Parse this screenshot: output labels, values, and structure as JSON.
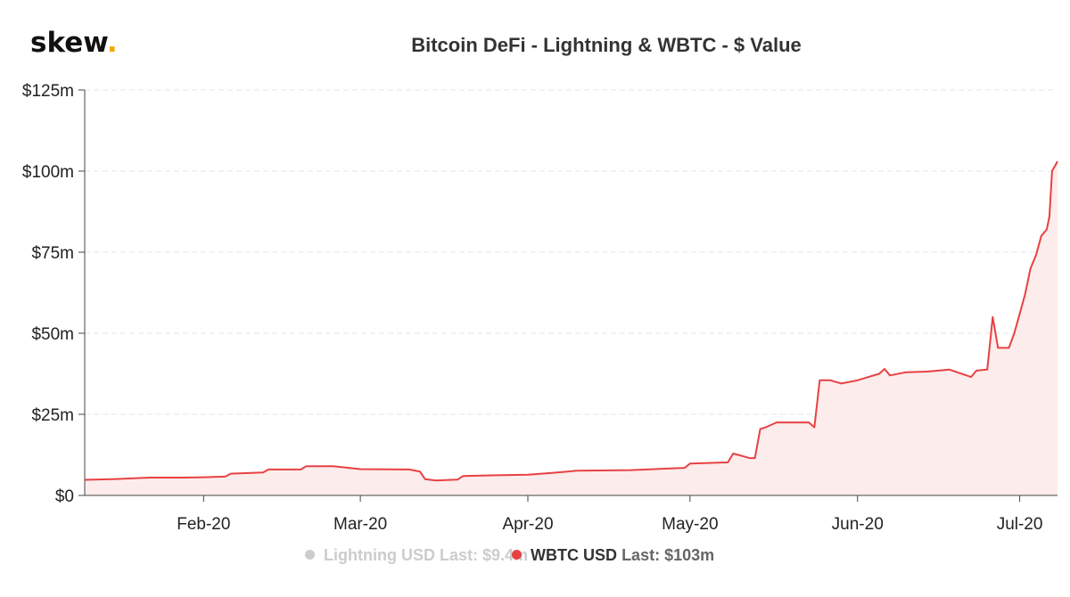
{
  "brand": {
    "logo_text": "skew",
    "logo_dot": ".",
    "dot_color": "#f2a900"
  },
  "chart_data": {
    "type": "line",
    "title": "Bitcoin DeFi - Lightning & WBTC - $ Value",
    "xlabel": "",
    "ylabel": "",
    "ylim": [
      0,
      125
    ],
    "yunit": "$m",
    "y_ticks": [
      "$0",
      "$25m",
      "$50m",
      "$75m",
      "$100m",
      "$125m"
    ],
    "y_tick_values": [
      0,
      25,
      50,
      75,
      100,
      125
    ],
    "xlim": [
      "2020-01-10",
      "2020-07-08"
    ],
    "x_ticks": [
      "Feb-20",
      "Mar-20",
      "Apr-20",
      "May-20",
      "Jun-20",
      "Jul-20"
    ],
    "x_tick_dates": [
      "2020-02-01",
      "2020-03-01",
      "2020-04-01",
      "2020-05-01",
      "2020-06-01",
      "2020-07-01"
    ],
    "grid": "horizontal dashed",
    "legend_position": "bottom-center",
    "series": [
      {
        "name": "Lightning USD",
        "last_label": "Last: $9.4m",
        "visible": false,
        "color": "#cccccc",
        "points": []
      },
      {
        "name": "WBTC USD",
        "last_label": "Last: $103m",
        "visible": true,
        "color": "#e84142",
        "fill": "#fdecec",
        "points": [
          [
            "2020-01-10",
            4.8
          ],
          [
            "2020-01-15",
            5.0
          ],
          [
            "2020-01-22",
            5.5
          ],
          [
            "2020-01-28",
            5.5
          ],
          [
            "2020-02-01",
            5.6
          ],
          [
            "2020-02-05",
            5.8
          ],
          [
            "2020-02-06",
            6.7
          ],
          [
            "2020-02-12",
            7.1
          ],
          [
            "2020-02-13",
            8.0
          ],
          [
            "2020-02-19",
            8.0
          ],
          [
            "2020-02-20",
            9.0
          ],
          [
            "2020-02-25",
            9.0
          ],
          [
            "2020-03-01",
            8.1
          ],
          [
            "2020-03-10",
            8.0
          ],
          [
            "2020-03-12",
            7.4
          ],
          [
            "2020-03-13",
            5.0
          ],
          [
            "2020-03-15",
            4.6
          ],
          [
            "2020-03-19",
            4.9
          ],
          [
            "2020-03-20",
            6.0
          ],
          [
            "2020-03-26",
            6.2
          ],
          [
            "2020-04-01",
            6.4
          ],
          [
            "2020-04-06",
            7.0
          ],
          [
            "2020-04-10",
            7.6
          ],
          [
            "2020-04-20",
            7.8
          ],
          [
            "2020-04-30",
            8.5
          ],
          [
            "2020-05-01",
            9.8
          ],
          [
            "2020-05-08",
            10.2
          ],
          [
            "2020-05-09",
            12.9
          ],
          [
            "2020-05-11",
            12.0
          ],
          [
            "2020-05-12",
            11.5
          ],
          [
            "2020-05-13",
            11.5
          ],
          [
            "2020-05-14",
            20.5
          ],
          [
            "2020-05-15",
            21.0
          ],
          [
            "2020-05-17",
            22.5
          ],
          [
            "2020-05-23",
            22.5
          ],
          [
            "2020-05-24",
            21.0
          ],
          [
            "2020-05-25",
            35.5
          ],
          [
            "2020-05-27",
            35.5
          ],
          [
            "2020-05-29",
            34.5
          ],
          [
            "2020-06-01",
            35.5
          ],
          [
            "2020-06-03",
            36.5
          ],
          [
            "2020-06-05",
            37.5
          ],
          [
            "2020-06-06",
            39.0
          ],
          [
            "2020-06-07",
            37.0
          ],
          [
            "2020-06-10",
            38.0
          ],
          [
            "2020-06-14",
            38.2
          ],
          [
            "2020-06-18",
            38.8
          ],
          [
            "2020-06-22",
            36.5
          ],
          [
            "2020-06-23",
            38.5
          ],
          [
            "2020-06-25",
            38.8
          ],
          [
            "2020-06-26",
            55.0
          ],
          [
            "2020-06-27",
            45.5
          ],
          [
            "2020-06-29",
            45.5
          ],
          [
            "2020-06-30",
            50.0
          ],
          [
            "2020-07-01",
            56.0
          ],
          [
            "2020-07-02",
            62.0
          ],
          [
            "2020-07-03",
            70.0
          ],
          [
            "2020-07-04",
            74.0
          ],
          [
            "2020-07-05",
            80.0
          ],
          [
            "2020-07-06",
            82.0
          ],
          [
            "2020-07-06T12",
            86.0
          ],
          [
            "2020-07-07",
            100.0
          ],
          [
            "2020-07-08",
            103.0
          ]
        ]
      }
    ]
  }
}
